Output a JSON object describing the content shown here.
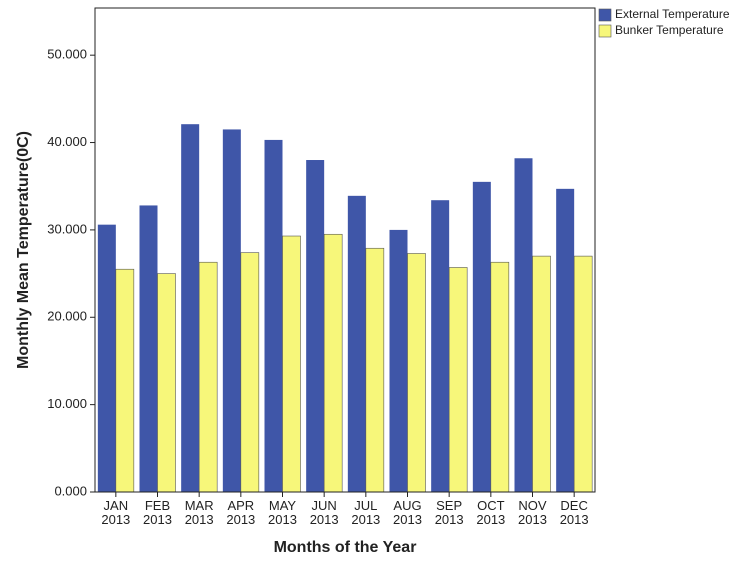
{
  "chart_data": {
    "type": "bar",
    "y_label": "Monthly Mean Temperature(0C)",
    "x_label": "Months of the Year",
    "categories": [
      "JAN 2013",
      "FEB 2013",
      "MAR 2013",
      "APR 2013",
      "MAY 2013",
      "JUN 2013",
      "JUL 2013",
      "AUG 2013",
      "SEP 2013",
      "OCT 2013",
      "NOV 2013",
      "DEC 2013"
    ],
    "series": [
      {
        "name": "External Temperature",
        "color": "#3f56a8",
        "values": [
          30.6,
          32.8,
          42.1,
          41.5,
          40.3,
          38.0,
          33.9,
          30.0,
          33.4,
          35.5,
          38.2,
          34.7
        ]
      },
      {
        "name": "Bunker Temperature",
        "color": "#f7f77a",
        "values": [
          25.5,
          25.0,
          26.3,
          27.4,
          29.3,
          29.5,
          27.9,
          27.3,
          25.7,
          26.3,
          27.0,
          27.0
        ]
      }
    ],
    "ylim": [
      0,
      55.4
    ],
    "yticks": [
      {
        "value": 0,
        "label": "0.000"
      },
      {
        "value": 10,
        "label": "10.000"
      },
      {
        "value": 20,
        "label": "20.000"
      },
      {
        "value": 30,
        "label": "30.000"
      },
      {
        "value": 40,
        "label": "40.000"
      },
      {
        "value": 50,
        "label": "50.000"
      }
    ],
    "legend": "top-right"
  }
}
